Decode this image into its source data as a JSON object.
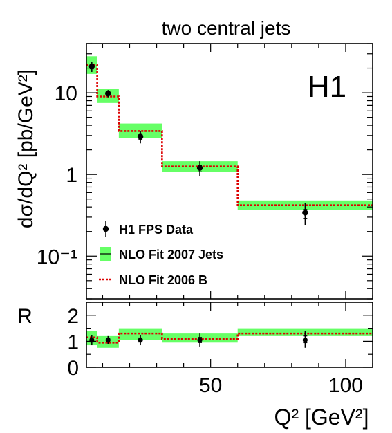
{
  "chart_data": [
    {
      "type": "line",
      "panel": "cross-section",
      "title": "two central jets",
      "experiment_label": "H1",
      "ylabel": "dσ/dQ² [pb/GeV²]",
      "yscale": "log",
      "ylim": [
        0.03,
        40
      ],
      "xlim": [
        4,
        110
      ],
      "ytick_labels": [
        "10",
        "1",
        "10⁻¹"
      ],
      "legend_position": "lower-left",
      "bins": [
        [
          4,
          8
        ],
        [
          8,
          16
        ],
        [
          16,
          32
        ],
        [
          32,
          60
        ],
        [
          60,
          110
        ]
      ],
      "series": [
        {
          "name": "H1 FPS Data",
          "style": "points",
          "x": [
            6,
            12,
            24,
            46,
            85
          ],
          "y": [
            21,
            9.8,
            2.9,
            1.2,
            0.34
          ],
          "yerr_low": [
            18,
            8.8,
            2.4,
            0.95,
            0.24
          ],
          "yerr_high": [
            24,
            10.8,
            3.4,
            1.45,
            0.45
          ]
        },
        {
          "name": "NLO Fit 2007 Jets",
          "style": "band",
          "color": "#66ff66",
          "low": [
            17,
            7.5,
            2.8,
            1.07,
            0.37
          ],
          "high": [
            28,
            11.2,
            4.2,
            1.45,
            0.48
          ]
        },
        {
          "name": "NLO Fit 2006 B",
          "style": "step-dashed",
          "color": "#dd0000",
          "values": [
            22,
            9.0,
            3.4,
            1.25,
            0.42
          ]
        }
      ]
    },
    {
      "type": "line",
      "panel": "ratio",
      "ylabel": "R",
      "ylim": [
        0,
        2.5
      ],
      "xlim": [
        4,
        110
      ],
      "xlabel": "Q² [GeV²]",
      "ytick_labels": [
        "0",
        "1",
        "2"
      ],
      "xtick_labels": [
        "50",
        "100"
      ],
      "bins": [
        [
          4,
          8
        ],
        [
          8,
          16
        ],
        [
          16,
          32
        ],
        [
          32,
          60
        ],
        [
          60,
          110
        ]
      ],
      "series": [
        {
          "name": "H1 FPS Data",
          "style": "points",
          "x": [
            6,
            12,
            24,
            46,
            85
          ],
          "y": [
            1.05,
            1.05,
            1.05,
            1.05,
            1.05
          ],
          "yerr_low": [
            0.85,
            0.9,
            0.85,
            0.8,
            0.75
          ],
          "yerr_high": [
            1.25,
            1.2,
            1.25,
            1.3,
            1.4
          ]
        },
        {
          "name": "NLO Fit 2007 Jets",
          "style": "band",
          "color": "#66ff66",
          "low": [
            0.85,
            0.75,
            1.05,
            0.95,
            1.2
          ],
          "high": [
            1.4,
            1.2,
            1.5,
            1.3,
            1.5
          ]
        },
        {
          "name": "NLO Fit 2006 B",
          "style": "step-dashed",
          "color": "#dd0000",
          "values": [
            1.15,
            0.95,
            1.3,
            1.1,
            1.3
          ]
        }
      ]
    }
  ]
}
